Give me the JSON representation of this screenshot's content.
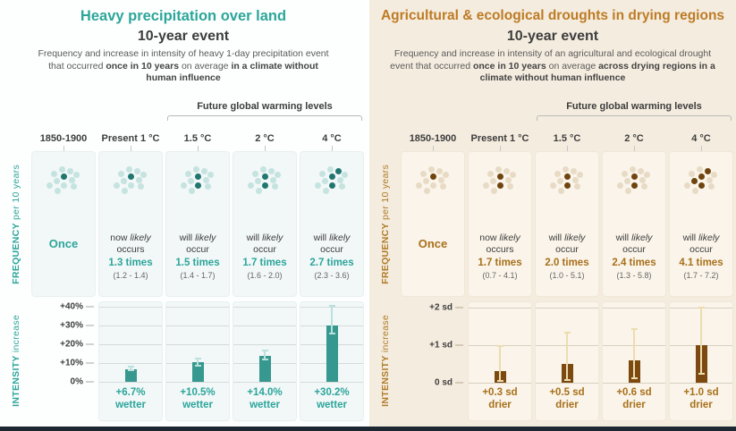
{
  "panels": [
    {
      "title": "Heavy precipitation over land",
      "subtitle": "10-year event",
      "description": [
        {
          "t": "Frequency and increase in intensity of heavy 1-day precipitation event that occurred ",
          "b": false
        },
        {
          "t": "once in 10 years",
          "b": true
        },
        {
          "t": " on average ",
          "b": false
        },
        {
          "t": "in a climate without human influence",
          "b": true
        }
      ],
      "future_label": "Future global warming levels",
      "freq_axis_strong": "FREQUENCY",
      "freq_axis_rest": " per 10 years",
      "int_axis_strong": "INTENSITY",
      "int_axis_rest": " increase",
      "yticks": [
        "+40%",
        "+30%",
        "+20%",
        "+10%",
        "0%"
      ],
      "columns": [
        {
          "header": "1850-1900",
          "once": "Once"
        },
        {
          "header": "Present 1 °C",
          "line1": "now",
          "likely": "likely",
          "line2": "occurs",
          "times": "1.3 times",
          "range": "(1.2 - 1.4)",
          "label_value": "+6.7%",
          "label_unit": "wetter"
        },
        {
          "header": "1.5 °C",
          "line1": "will",
          "likely": "likely",
          "line2": "occur",
          "times": "1.5 times",
          "range": "(1.4 - 1.7)",
          "label_value": "+10.5%",
          "label_unit": "wetter"
        },
        {
          "header": "2 °C",
          "line1": "will",
          "likely": "likely",
          "line2": "occur",
          "times": "1.7 times",
          "range": "(1.6 - 2.0)",
          "label_value": "+14.0%",
          "label_unit": "wetter"
        },
        {
          "header": "4 °C",
          "line1": "will",
          "likely": "likely",
          "line2": "occur",
          "times": "2.7 times",
          "range": "(2.3 - 3.6)",
          "label_value": "+30.2%",
          "label_unit": "wetter"
        }
      ]
    },
    {
      "title": "Agricultural & ecological droughts in drying regions",
      "subtitle": "10-year event",
      "description": [
        {
          "t": "Frequency and increase in intensity of an agricultural and ecological drought event that occurred ",
          "b": false
        },
        {
          "t": "once in 10 years",
          "b": true
        },
        {
          "t": " on average ",
          "b": false
        },
        {
          "t": "across drying regions in a climate without human influence",
          "b": true
        }
      ],
      "future_label": "Future global warming levels",
      "freq_axis_strong": "FREQUENCY",
      "freq_axis_rest": " per 10 years",
      "int_axis_strong": "INTENSITY",
      "int_axis_rest": " increase",
      "yticks": [
        "+2 sd",
        "+1 sd",
        "0 sd"
      ],
      "columns": [
        {
          "header": "1850-1900",
          "once": "Once"
        },
        {
          "header": "Present 1 °C",
          "line1": "now",
          "likely": "likely",
          "line2": "occurs",
          "times": "1.7 times",
          "range": "(0.7 - 4.1)",
          "label_value": "+0.3 sd",
          "label_unit": "drier"
        },
        {
          "header": "1.5 °C",
          "line1": "will",
          "likely": "likely",
          "line2": "occur",
          "times": "2.0 times",
          "range": "(1.0 - 5.1)",
          "label_value": "+0.5 sd",
          "label_unit": "drier"
        },
        {
          "header": "2 °C",
          "line1": "will",
          "likely": "likely",
          "line2": "occur",
          "times": "2.4 times",
          "range": "(1.3 - 5.8)",
          "label_value": "+0.6 sd",
          "label_unit": "drier"
        },
        {
          "header": "4 °C",
          "line1": "will",
          "likely": "likely",
          "line2": "occur",
          "times": "4.1 times",
          "range": "(1.7 - 7.2)",
          "label_value": "+1.0 sd",
          "label_unit": "drier"
        }
      ]
    }
  ],
  "chart_data": [
    {
      "type": "bar",
      "title": "Heavy precipitation over land — 10-year event",
      "categories": [
        "1850-1900",
        "Present 1 °C",
        "1.5 °C",
        "2 °C",
        "4 °C"
      ],
      "frequency_times": [
        1,
        1.3,
        1.5,
        1.7,
        2.7
      ],
      "frequency_likely_ranges": [
        null,
        [
          1.2,
          1.4
        ],
        [
          1.4,
          1.7
        ],
        [
          1.6,
          2.0
        ],
        [
          2.3,
          3.6
        ]
      ],
      "intensity_values": [
        0,
        6.7,
        10.5,
        14.0,
        30.2
      ],
      "intensity_unit": "%",
      "intensity_whiskers": [
        null,
        [
          5.5,
          8.5
        ],
        [
          8.0,
          13.0
        ],
        [
          11.5,
          17.0
        ],
        [
          25.0,
          41.0
        ]
      ],
      "ylabel": "INTENSITY increase",
      "ytick_values": [
        0,
        10,
        20,
        30,
        40
      ],
      "ylim": [
        0,
        42
      ],
      "grid": true,
      "accent_color": "#2ca69a",
      "bar_color": "#37988f",
      "whisker_color": "#b9e2dd",
      "dot_color": "#c5e3df",
      "dot_dark_color": "#20776f"
    },
    {
      "type": "bar",
      "title": "Agricultural & ecological droughts in drying regions — 10-year event",
      "categories": [
        "1850-1900",
        "Present 1 °C",
        "1.5 °C",
        "2 °C",
        "4 °C"
      ],
      "frequency_times": [
        1,
        1.7,
        2.0,
        2.4,
        4.1
      ],
      "frequency_likely_ranges": [
        null,
        [
          0.7,
          4.1
        ],
        [
          1.0,
          5.1
        ],
        [
          1.3,
          5.8
        ],
        [
          1.7,
          7.2
        ]
      ],
      "intensity_values": [
        0,
        0.3,
        0.5,
        0.6,
        1.0
      ],
      "intensity_unit": "sd",
      "intensity_whiskers": [
        null,
        [
          0.02,
          1.0
        ],
        [
          0.05,
          1.35
        ],
        [
          0.1,
          1.45
        ],
        [
          0.22,
          2.02
        ]
      ],
      "ylabel": "INTENSITY increase",
      "ytick_values": [
        0,
        1,
        2
      ],
      "ylim": [
        0,
        2.1
      ],
      "grid": true,
      "accent_color": "#bd7b24",
      "bar_color": "#7c4a11",
      "whisker_color": "#ecdcae",
      "dot_color": "#e8dbc5",
      "dot_dark_color": "#6f440e"
    }
  ],
  "footer_bar_color": "#1d2731"
}
